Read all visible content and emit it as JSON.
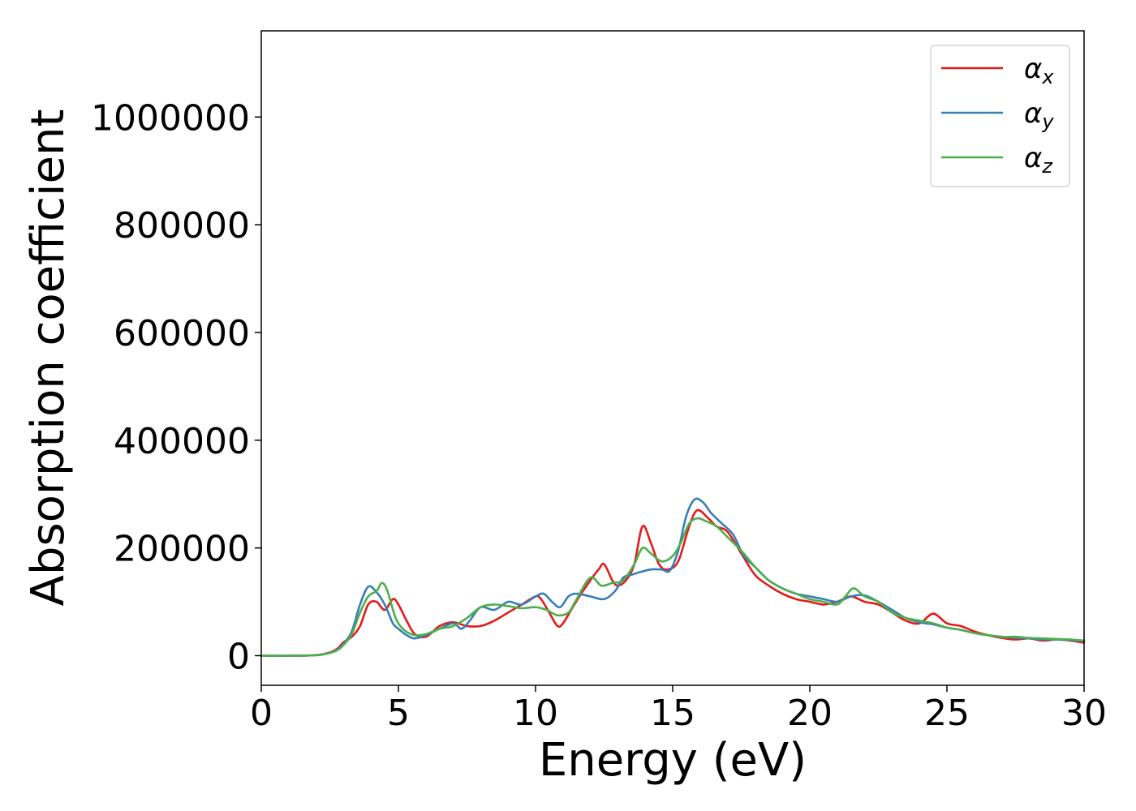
{
  "chart_data": {
    "type": "line",
    "title": "",
    "xlabel": "Energy (eV)",
    "ylabel": "Absorption coefficient",
    "xlim": [
      0,
      30
    ],
    "ylim": [
      -55000,
      1160000
    ],
    "xticks": [
      0,
      5,
      10,
      15,
      20,
      25,
      30
    ],
    "xtick_labels": [
      "0",
      "5",
      "10",
      "15",
      "20",
      "25",
      "30"
    ],
    "yticks": [
      0,
      200000,
      400000,
      600000,
      800000,
      1000000
    ],
    "ytick_labels": [
      "0",
      "200000",
      "400000",
      "600000",
      "800000",
      "1000000"
    ],
    "grid": false,
    "legend_position": "top-right",
    "series": [
      {
        "name": "α",
        "subscript": "x",
        "color": "#e41a1c",
        "x": [
          0,
          1,
          2,
          2.5,
          2.8,
          3.0,
          3.3,
          3.6,
          3.9,
          4.2,
          4.5,
          4.8,
          5.0,
          5.3,
          5.6,
          6.0,
          6.5,
          7.0,
          7.5,
          8.0,
          8.5,
          9.0,
          9.5,
          10.0,
          10.2,
          10.5,
          10.8,
          11.0,
          11.3,
          11.6,
          12.0,
          12.3,
          12.5,
          12.8,
          13.0,
          13.3,
          13.6,
          13.9,
          14.2,
          14.5,
          14.8,
          15.2,
          15.6,
          15.9,
          16.3,
          16.6,
          17.0,
          17.5,
          18.0,
          18.5,
          19.0,
          19.5,
          20.0,
          20.5,
          21.0,
          21.5,
          22.0,
          22.5,
          23.0,
          23.5,
          24.0,
          24.5,
          25.0,
          25.5,
          26.0,
          26.5,
          27.0,
          27.5,
          28.0,
          28.5,
          29.0,
          29.5,
          30.0
        ],
        "y": [
          0,
          0,
          1000,
          6000,
          14000,
          25000,
          35000,
          55000,
          95000,
          100000,
          85000,
          105000,
          95000,
          65000,
          40000,
          35000,
          55000,
          62000,
          55000,
          55000,
          65000,
          80000,
          95000,
          110000,
          105000,
          80000,
          55000,
          60000,
          85000,
          110000,
          140000,
          160000,
          170000,
          140000,
          130000,
          140000,
          170000,
          240000,
          210000,
          170000,
          160000,
          175000,
          240000,
          270000,
          255000,
          240000,
          230000,
          190000,
          150000,
          130000,
          115000,
          105000,
          100000,
          95000,
          100000,
          110000,
          100000,
          95000,
          80000,
          65000,
          60000,
          78000,
          60000,
          55000,
          45000,
          38000,
          33000,
          30000,
          32000,
          28000,
          30000,
          28000,
          24000
        ]
      },
      {
        "name": "α",
        "subscript": "y",
        "color": "#377eb8",
        "x": [
          0,
          1,
          2,
          2.5,
          2.8,
          3.0,
          3.3,
          3.6,
          3.9,
          4.2,
          4.5,
          4.8,
          5.0,
          5.3,
          5.6,
          6.0,
          6.5,
          7.0,
          7.3,
          7.6,
          8.0,
          8.5,
          9.0,
          9.5,
          10.0,
          10.3,
          10.6,
          10.9,
          11.2,
          11.5,
          12.0,
          12.5,
          12.9,
          13.2,
          13.5,
          13.8,
          14.2,
          14.6,
          14.9,
          15.2,
          15.5,
          15.8,
          16.1,
          16.4,
          16.8,
          17.2,
          17.6,
          18.0,
          18.5,
          19.0,
          19.5,
          20.0,
          20.5,
          21.0,
          21.5,
          22.0,
          22.5,
          23.0,
          23.5,
          24.0,
          24.5,
          25.0,
          25.5,
          26.0,
          26.5,
          27.0,
          27.5,
          28.0,
          28.5,
          29.0,
          29.5,
          30.0
        ],
        "y": [
          0,
          0,
          1000,
          5000,
          12000,
          22000,
          45000,
          95000,
          128000,
          118000,
          95000,
          60000,
          50000,
          38000,
          32000,
          38000,
          50000,
          60000,
          50000,
          65000,
          90000,
          85000,
          100000,
          95000,
          110000,
          115000,
          100000,
          90000,
          110000,
          115000,
          110000,
          105000,
          120000,
          145000,
          150000,
          155000,
          160000,
          160000,
          158000,
          195000,
          260000,
          290000,
          285000,
          265000,
          245000,
          225000,
          185000,
          165000,
          140000,
          125000,
          115000,
          110000,
          105000,
          100000,
          110000,
          112000,
          100000,
          85000,
          70000,
          62000,
          58000,
          52000,
          48000,
          42000,
          38000,
          35000,
          33000,
          32000,
          30000,
          30000,
          29000,
          27000
        ]
      },
      {
        "name": "α",
        "subscript": "z",
        "color": "#4daf4a",
        "x": [
          0,
          1,
          2,
          2.5,
          2.8,
          3.0,
          3.3,
          3.6,
          3.9,
          4.2,
          4.4,
          4.6,
          4.9,
          5.2,
          5.6,
          6.0,
          6.5,
          7.0,
          7.5,
          8.0,
          8.5,
          9.0,
          9.5,
          10.0,
          10.4,
          10.8,
          11.2,
          11.5,
          12.0,
          12.4,
          12.8,
          13.2,
          13.6,
          13.9,
          14.2,
          14.6,
          15.0,
          15.3,
          15.6,
          15.9,
          16.2,
          16.6,
          17.0,
          17.5,
          18.0,
          18.5,
          19.0,
          19.5,
          20.0,
          20.5,
          21.0,
          21.3,
          21.6,
          22.0,
          22.5,
          23.0,
          23.5,
          24.0,
          24.5,
          25.0,
          25.5,
          26.0,
          26.5,
          27.0,
          27.5,
          28.0,
          28.5,
          29.0,
          29.5,
          30.0
        ],
        "y": [
          0,
          0,
          800,
          5000,
          11000,
          20000,
          40000,
          80000,
          110000,
          120000,
          135000,
          120000,
          70000,
          48000,
          38000,
          40000,
          50000,
          55000,
          70000,
          90000,
          95000,
          92000,
          88000,
          90000,
          85000,
          75000,
          80000,
          105000,
          145000,
          130000,
          135000,
          140000,
          170000,
          200000,
          190000,
          175000,
          185000,
          210000,
          245000,
          255000,
          250000,
          240000,
          220000,
          195000,
          165000,
          140000,
          125000,
          115000,
          105000,
          100000,
          95000,
          110000,
          125000,
          110000,
          100000,
          80000,
          70000,
          65000,
          60000,
          52000,
          48000,
          42000,
          38000,
          35000,
          35000,
          33000,
          32000,
          31000,
          30000,
          28000
        ]
      }
    ]
  }
}
